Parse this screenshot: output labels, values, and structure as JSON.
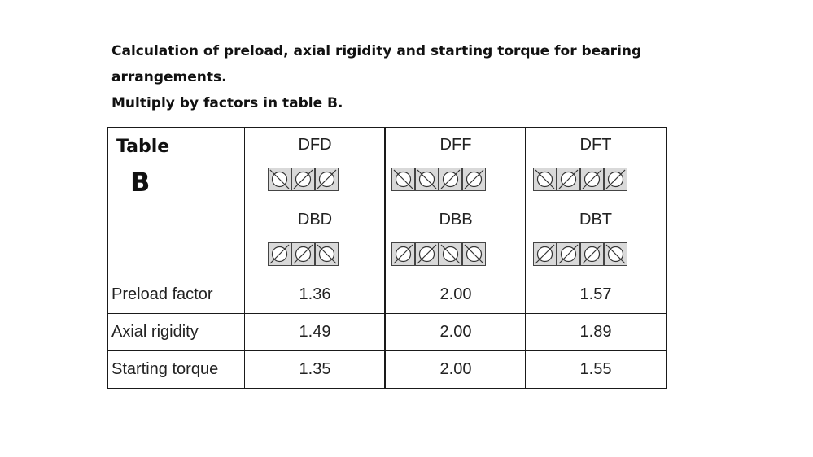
{
  "heading": {
    "line1": "Calculation of preload, axial rigidity and starting torque for bearing",
    "line2": "arrangements.",
    "line3": "Multiply by factors in table B."
  },
  "table": {
    "label": "Table",
    "letter": "B",
    "arrangements_top": [
      {
        "name": "DFD",
        "bearings": [
          "back",
          "fwd",
          "fwd"
        ]
      },
      {
        "name": "DFF",
        "bearings": [
          "back",
          "back",
          "fwd",
          "fwd"
        ]
      },
      {
        "name": "DFT",
        "bearings": [
          "back",
          "fwd",
          "fwd",
          "fwd"
        ]
      }
    ],
    "arrangements_bottom": [
      {
        "name": "DBD",
        "bearings": [
          "fwd",
          "fwd",
          "back"
        ]
      },
      {
        "name": "DBB",
        "bearings": [
          "fwd",
          "fwd",
          "back",
          "back"
        ]
      },
      {
        "name": "DBT",
        "bearings": [
          "fwd",
          "fwd",
          "fwd",
          "back"
        ]
      }
    ],
    "rows": [
      {
        "label": "Preload factor",
        "values": [
          "1.36",
          "2.00",
          "1.57"
        ]
      },
      {
        "label": "Axial rigidity",
        "values": [
          "1.49",
          "2.00",
          "1.89"
        ]
      },
      {
        "label": "Starting torque",
        "values": [
          "1.35",
          "2.00",
          "1.55"
        ]
      }
    ]
  }
}
